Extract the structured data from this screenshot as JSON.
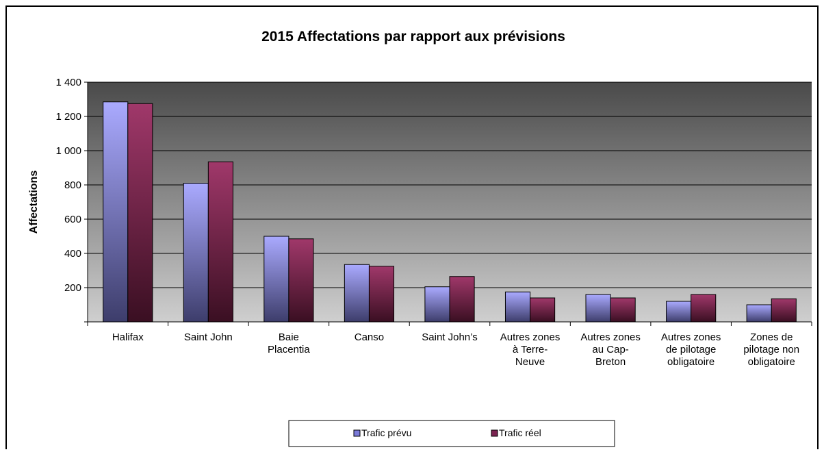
{
  "chart_data": {
    "type": "bar",
    "title": "2015 Affectations par rapport aux prévisions",
    "xlabel": "",
    "ylabel": "Affectations",
    "ylim": [
      0,
      1400
    ],
    "yticks": [
      "",
      "200",
      "400",
      "600",
      "800",
      "1 000",
      "1 200",
      "1 400"
    ],
    "categories": [
      [
        "Halifax"
      ],
      [
        "Saint John"
      ],
      [
        "Baie",
        "Placentia"
      ],
      [
        "Canso"
      ],
      [
        "Saint John’s"
      ],
      [
        "Autres zones",
        "à Terre-",
        "Neuve"
      ],
      [
        "Autres zones",
        "au Cap-",
        "Breton"
      ],
      [
        "Autres zones",
        "de pilotage",
        "obligatoire"
      ],
      [
        "Zones de",
        "pilotage non",
        "obligatoire"
      ]
    ],
    "series": [
      {
        "name": "Trafic prévu",
        "values": [
          1285,
          810,
          500,
          335,
          205,
          175,
          160,
          120,
          100
        ]
      },
      {
        "name": "Trafic réel",
        "values": [
          1275,
          935,
          485,
          325,
          265,
          140,
          140,
          160,
          135
        ]
      }
    ],
    "grid": true,
    "legend": "bottom-center"
  },
  "colors": {
    "series1_light": "#aaaaff",
    "series1_dark": "#3d3d6b",
    "series2_light": "#a0386a",
    "series2_dark": "#3a0f22",
    "plot_top": "#4a4a4a",
    "plot_bottom": "#cfcfcf"
  }
}
